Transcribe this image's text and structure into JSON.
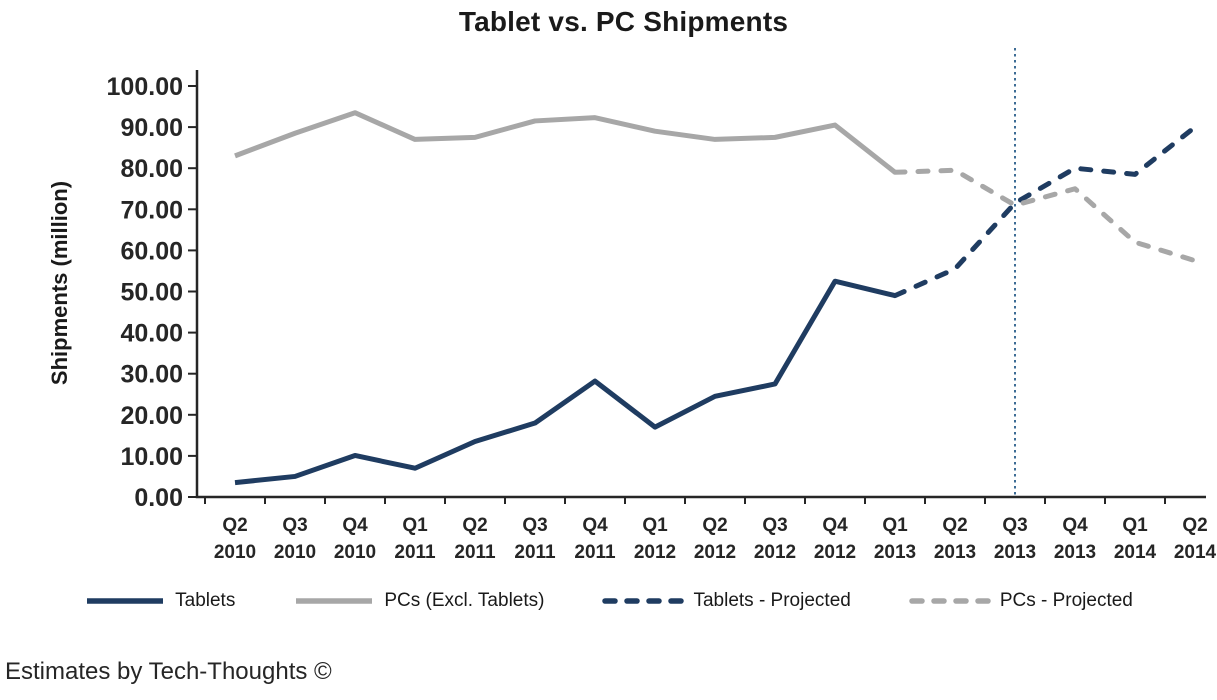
{
  "title": "Tablet vs. PC Shipments",
  "footer": "Estimates by Tech-Thoughts ©",
  "chart_data": {
    "type": "line",
    "title": "Tablet vs. PC Shipments",
    "xlabel": "",
    "ylabel": "Shipments (million)",
    "ylim": [
      0,
      100
    ],
    "ytick_step": 10,
    "ytick_labels": [
      "0.00",
      "10.00",
      "20.00",
      "30.00",
      "40.00",
      "50.00",
      "60.00",
      "70.00",
      "80.00",
      "90.00",
      "100.00"
    ],
    "grid": false,
    "legend_position": "bottom",
    "categories": [
      "Q2 2010",
      "Q3 2010",
      "Q4 2010",
      "Q1 2011",
      "Q2 2011",
      "Q3 2011",
      "Q4 2011",
      "Q1 2012",
      "Q2 2012",
      "Q3 2012",
      "Q4 2012",
      "Q1 2013",
      "Q2 2013",
      "Q3 2013",
      "Q4 2013",
      "Q1 2014",
      "Q2 2014"
    ],
    "series": [
      {
        "name": "Tablets",
        "style": "solid",
        "color": "#1f3c61",
        "values": [
          3.5,
          5.0,
          10.1,
          7.0,
          13.5,
          18.0,
          28.2,
          17.0,
          24.5,
          27.5,
          52.5,
          49.0,
          null,
          null,
          null,
          null,
          null
        ]
      },
      {
        "name": "PCs (Excl. Tablets)",
        "style": "solid",
        "color": "#a7a7a7",
        "values": [
          83.0,
          88.5,
          93.5,
          87.0,
          87.5,
          91.5,
          92.3,
          89.0,
          87.0,
          87.5,
          90.5,
          79.0,
          null,
          null,
          null,
          null,
          null
        ]
      },
      {
        "name": "Tablets - Projected",
        "style": "dashed",
        "color": "#1f3c61",
        "values": [
          null,
          null,
          null,
          null,
          null,
          null,
          null,
          null,
          null,
          null,
          null,
          49.0,
          55.5,
          71.5,
          80.0,
          78.5,
          90.0
        ]
      },
      {
        "name": "PCs - Projected",
        "style": "dashed",
        "color": "#a7a7a7",
        "values": [
          null,
          null,
          null,
          null,
          null,
          null,
          null,
          null,
          null,
          null,
          null,
          79.0,
          79.5,
          71.0,
          75.0,
          62.0,
          57.5
        ]
      }
    ],
    "vline": {
      "x_category": "Q3 2013",
      "color": "#3d6c95",
      "style": "dotted"
    }
  }
}
